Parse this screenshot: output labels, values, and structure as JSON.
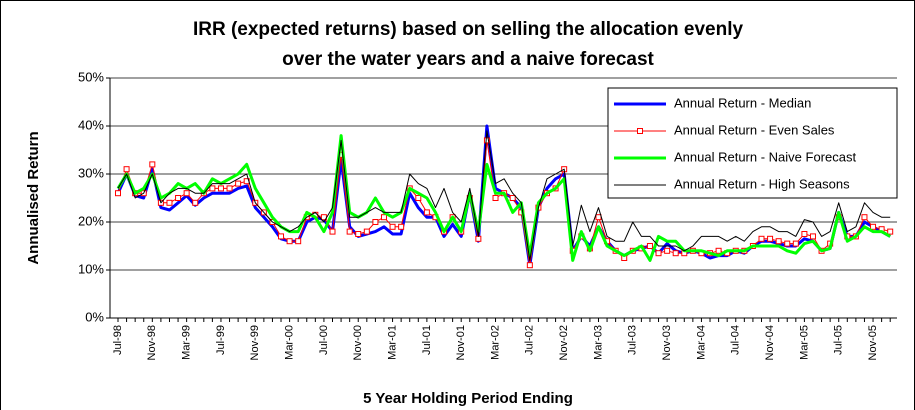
{
  "chart_data": {
    "type": "line",
    "title": [
      "IRR (expected returns) based on selling the allocation evenly",
      "over the water years and a naive forecast"
    ],
    "xlabel": "5 Year Holding Period Ending",
    "ylabel": "Annualised Return",
    "categories": [
      "Jul-98",
      null,
      null,
      null,
      "Nov-98",
      null,
      null,
      null,
      "Mar-99",
      null,
      null,
      null,
      "Jul-99",
      null,
      null,
      null,
      "Nov-99",
      null,
      null,
      null,
      "Mar-00",
      null,
      null,
      null,
      "Jul-00",
      null,
      null,
      null,
      "Nov-00",
      null,
      null,
      null,
      "Mar-01",
      null,
      null,
      null,
      "Jul-01",
      null,
      null,
      null,
      "Nov-01",
      null,
      null,
      null,
      "Mar-02",
      null,
      null,
      null,
      "Jul-02",
      null,
      null,
      null,
      "Nov-02",
      null,
      null,
      null,
      "Mar-03",
      null,
      null,
      null,
      "Jul-03",
      null,
      null,
      null,
      "Nov-03",
      null,
      null,
      null,
      "Mar-04",
      null,
      null,
      null,
      "Jul-04",
      null,
      null,
      null,
      "Nov-04",
      null,
      null,
      null,
      "Mar-05",
      null,
      null,
      null,
      "Jul-05",
      null,
      null,
      null,
      "Nov-05",
      null,
      null
    ],
    "series": [
      {
        "name": "Annual Return - Median",
        "color": "#0000ff",
        "values": [
          26,
          30,
          25.5,
          25,
          31,
          23,
          22.5,
          24,
          25.5,
          23.5,
          25,
          26,
          26,
          26,
          27,
          27.5,
          23,
          21,
          19,
          16.5,
          16,
          16,
          20,
          21,
          20.5,
          18,
          33,
          19,
          17,
          17.5,
          18,
          19,
          17.5,
          17.5,
          26,
          23,
          21,
          21,
          17,
          19.5,
          17,
          26,
          16,
          40,
          27,
          26,
          25,
          23,
          11,
          23,
          27,
          29,
          30,
          14,
          17,
          15,
          19,
          16,
          14,
          13,
          14,
          14.5,
          15,
          13.5,
          15.5,
          14,
          13.5,
          14,
          13.5,
          12.5,
          13,
          13,
          14,
          13.5,
          15,
          16,
          16,
          15.5,
          15,
          15,
          16.5,
          16,
          14,
          14.5,
          22,
          17,
          17,
          20,
          19,
          18,
          17
        ]
      },
      {
        "name": "Annual Return - Even Sales",
        "color": "#ff0000",
        "marker": "square",
        "values": [
          26,
          31,
          26,
          26,
          32,
          24,
          24,
          25,
          26,
          24,
          26,
          27,
          27,
          27,
          28,
          28.5,
          24,
          22,
          20,
          17,
          16,
          16,
          21,
          21.5,
          21,
          18,
          34,
          18,
          17.5,
          18,
          20,
          21,
          19,
          19,
          27,
          25,
          22,
          21,
          18,
          21,
          18,
          25,
          16.5,
          37,
          25,
          26,
          25,
          22,
          11,
          23,
          26,
          27,
          31,
          14,
          17,
          14.5,
          21,
          16,
          14,
          12.5,
          14,
          14.5,
          15,
          13.5,
          14,
          13.5,
          13.5,
          14,
          13.5,
          13.5,
          14,
          13.5,
          14,
          14,
          15,
          16.5,
          16.5,
          16,
          15.5,
          15.5,
          17.5,
          17,
          14,
          15.5,
          21,
          17,
          17,
          21,
          19,
          18.5,
          18
        ]
      },
      {
        "name": "Annual Return - Naive Forecast",
        "color": "#00ff00",
        "values": [
          27,
          30,
          26,
          27,
          30,
          25,
          26,
          28,
          27,
          28,
          26,
          29,
          28,
          29,
          30,
          32,
          27,
          24,
          21,
          19,
          18,
          18,
          22,
          21,
          18,
          22,
          38,
          22,
          21,
          22,
          25,
          22,
          21,
          22,
          27,
          26,
          25,
          22,
          18,
          21,
          18,
          26,
          18,
          32,
          26,
          26,
          22,
          24,
          13,
          24,
          26,
          27,
          29,
          12,
          18,
          14,
          19,
          15,
          14,
          13,
          14,
          15,
          12,
          17,
          16,
          16,
          14,
          14,
          14,
          13.5,
          13,
          14,
          14,
          14,
          15,
          15,
          15,
          15,
          14,
          13.5,
          15.5,
          16,
          14,
          14.5,
          22,
          16,
          17,
          19,
          18,
          18,
          17
        ]
      },
      {
        "name": "Annual Return - High Seasons",
        "color": "#000000",
        "values": [
          27,
          30,
          25,
          26,
          30,
          24,
          26,
          27,
          27,
          26,
          26,
          28,
          28,
          28,
          29,
          30,
          24,
          22,
          20,
          19,
          18,
          19,
          21,
          22,
          20,
          23,
          37,
          21,
          21,
          22,
          23,
          22,
          22,
          22,
          30,
          28,
          27,
          23,
          27,
          22,
          20,
          27,
          17,
          39,
          28,
          29,
          26,
          24,
          12,
          23,
          29,
          30,
          31,
          15,
          23.5,
          18,
          23,
          17,
          16,
          16,
          20,
          17,
          17,
          15,
          15,
          15,
          14,
          15,
          17,
          17,
          17,
          16,
          17,
          16,
          18,
          19,
          19,
          18,
          18,
          17,
          20.5,
          20,
          17,
          18,
          24,
          18,
          19,
          24,
          22,
          21,
          21
        ]
      }
    ],
    "ylim": [
      0,
      50
    ],
    "yticks": [
      {
        "value": 0,
        "label": "0%"
      },
      {
        "value": 10,
        "label": "10%"
      },
      {
        "value": 20,
        "label": "20%"
      },
      {
        "value": 30,
        "label": "30%"
      },
      {
        "value": 40,
        "label": "40%"
      },
      {
        "value": 50,
        "label": "50%"
      }
    ],
    "grid": true,
    "legend": "top-right"
  }
}
